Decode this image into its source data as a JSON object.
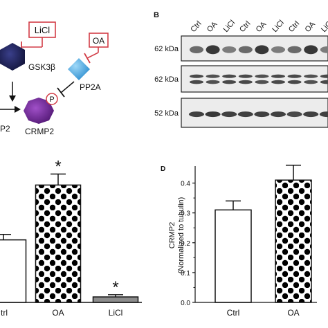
{
  "panel_a": {
    "licl_label": "LiCl",
    "oa_label": "OA",
    "gsk3b_label": "GSK3β",
    "pp2a_label": "PP2A",
    "p_label": "P",
    "crmp2_label": "CRMP2",
    "cut_label": "P2",
    "colors": {
      "inhibitor_red": "#d23c46",
      "gsk3b": "#2a2f6e",
      "pp2a": "#4aa8e0",
      "crmp2": "#7a2fa0"
    }
  },
  "panel_b": {
    "letter": "B",
    "lane_labels": [
      "Ctrl",
      "OA",
      "LiCl",
      "Ctrl",
      "OA",
      "LiCl",
      "Ctrl",
      "OA",
      "LiCl"
    ],
    "blots": [
      {
        "kda_label": "62 kDa",
        "band_intensity": [
          0.55,
          0.85,
          0.45,
          0.55,
          0.85,
          0.45,
          0.55,
          0.85,
          0.45
        ]
      },
      {
        "kda_label": "62 kDa",
        "band_intensity": [
          0.75,
          0.7,
          0.75,
          0.75,
          0.7,
          0.75,
          0.75,
          0.7,
          0.75
        ]
      },
      {
        "kda_label": "52 kDa",
        "band_intensity": [
          0.8,
          0.85,
          0.8,
          0.8,
          0.8,
          0.8,
          0.75,
          0.8,
          0.8
        ]
      }
    ]
  },
  "chart_data": [
    {
      "type": "bar",
      "panel": "C",
      "categories": [
        "Ctrl",
        "OA",
        "LiCl"
      ],
      "category_labels_shown": [
        "trl",
        "OA",
        "LiCl"
      ],
      "values": [
        0.57,
        1.07,
        0.05
      ],
      "errors": [
        0.05,
        0.1,
        0.02
      ],
      "significance": [
        "",
        "*",
        "*"
      ],
      "fills": [
        "white",
        "dots",
        "gray"
      ],
      "ylim": [
        0,
        1.35
      ],
      "xlabel": "",
      "ylabel": ""
    },
    {
      "type": "bar",
      "panel": "D",
      "letter": "D",
      "categories": [
        "Ctrl",
        "OA"
      ],
      "values": [
        0.31,
        0.41
      ],
      "errors": [
        0.03,
        0.05
      ],
      "fills": [
        "white",
        "dots"
      ],
      "ylim": [
        0.0,
        0.45
      ],
      "yticks": [
        "0.0",
        "0.1",
        "0.2",
        "0.3",
        "0.4"
      ],
      "ytick_values": [
        0.0,
        0.1,
        0.2,
        0.3,
        0.4
      ],
      "ylabel_line1": "CRMP2",
      "ylabel_line2": "(Normalized to tubulin)",
      "xlabel": ""
    }
  ]
}
